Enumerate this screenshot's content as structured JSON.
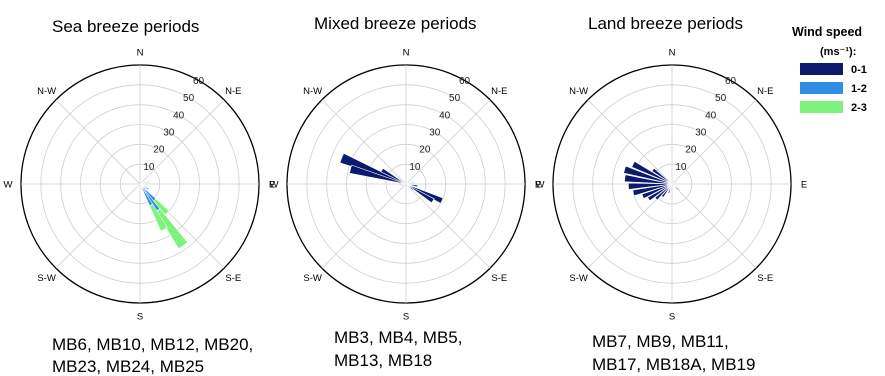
{
  "legend": {
    "title": "Wind speed",
    "unit": "(ms⁻¹):",
    "items": [
      {
        "label": "0-1",
        "color": "#0c1a6e"
      },
      {
        "label": "1-2",
        "color": "#2f8de8"
      },
      {
        "label": "2-3",
        "color": "#7df27d"
      }
    ]
  },
  "chart_data": [
    {
      "type": "wind-rose",
      "title": "Sea breeze periods",
      "stations": [
        "MB6, MB10, MB12, MB20,",
        "MB23, MB24, MB25"
      ],
      "directions": [
        "N",
        "N-E",
        "E",
        "S-E",
        "S",
        "S-W",
        "W",
        "N-W"
      ],
      "radial_ticks": [
        10,
        20,
        30,
        40,
        50,
        60
      ],
      "rmax": 60,
      "bins": [
        "0-1",
        "1-2",
        "2-3"
      ],
      "petals": [
        {
          "dir": 145,
          "segments": [
            5,
            11,
            22
          ]
        },
        {
          "dir": 152,
          "segments": [
            4,
            8,
            14
          ]
        },
        {
          "dir": 137,
          "segments": [
            4,
            7,
            9
          ]
        },
        {
          "dir": 122,
          "segments": [
            3,
            2
          ]
        },
        {
          "dir": 75,
          "segments": [
            2,
            1,
            2
          ]
        },
        {
          "dir": 60,
          "segments": [
            2,
            1
          ]
        },
        {
          "dir": 100,
          "segments": [
            2,
            1
          ]
        },
        {
          "dir": 235,
          "segments": [
            2
          ]
        }
      ]
    },
    {
      "type": "wind-rose",
      "title": "Mixed breeze periods",
      "stations": [
        "MB3, MB4, MB5,",
        "MB13, MB18"
      ],
      "directions": [
        "N",
        "N-E",
        "E",
        "S-E",
        "S",
        "S-W",
        "W",
        "N-W"
      ],
      "radial_ticks": [
        10,
        20,
        30,
        40,
        50,
        60
      ],
      "rmax": 60,
      "bins": [
        "0-1",
        "1-2",
        "2-3"
      ],
      "petals": [
        {
          "dir": 292,
          "segments": [
            35
          ]
        },
        {
          "dir": 285,
          "segments": [
            29
          ]
        },
        {
          "dir": 300,
          "segments": [
            14
          ]
        },
        {
          "dir": 115,
          "segments": [
            20
          ]
        },
        {
          "dir": 122,
          "segments": [
            16
          ]
        },
        {
          "dir": 100,
          "segments": [
            6
          ]
        },
        {
          "dir": 80,
          "segments": [
            3,
            1
          ]
        },
        {
          "dir": 130,
          "segments": [
            4,
            1
          ]
        },
        {
          "dir": 250,
          "segments": [
            3
          ]
        },
        {
          "dir": 60,
          "segments": [
            2
          ]
        }
      ]
    },
    {
      "type": "wind-rose",
      "title": "Land breeze periods",
      "stations": [
        "MB7, MB9, MB11,",
        "MB17, MB18A, MB19"
      ],
      "directions": [
        "N",
        "N-E",
        "E",
        "S-E",
        "S",
        "S-W",
        "W",
        "N-W"
      ],
      "radial_ticks": [
        10,
        20,
        30,
        40,
        50,
        60
      ],
      "rmax": 60,
      "bins": [
        "0-1",
        "1-2",
        "2-3"
      ],
      "petals": [
        {
          "dir": 297,
          "segments": [
            22
          ]
        },
        {
          "dir": 287,
          "segments": [
            25
          ]
        },
        {
          "dir": 277,
          "segments": [
            24
          ]
        },
        {
          "dir": 267,
          "segments": [
            22
          ]
        },
        {
          "dir": 257,
          "segments": [
            20
          ]
        },
        {
          "dir": 247,
          "segments": [
            16
          ]
        },
        {
          "dir": 237,
          "segments": [
            14
          ]
        },
        {
          "dir": 227,
          "segments": [
            11
          ]
        },
        {
          "dir": 217,
          "segments": [
            8
          ]
        },
        {
          "dir": 307,
          "segments": [
            12
          ]
        },
        {
          "dir": 200,
          "segments": [
            5
          ]
        },
        {
          "dir": 130,
          "segments": [
            4,
            1
          ]
        },
        {
          "dir": 60,
          "segments": [
            3
          ]
        }
      ]
    }
  ]
}
